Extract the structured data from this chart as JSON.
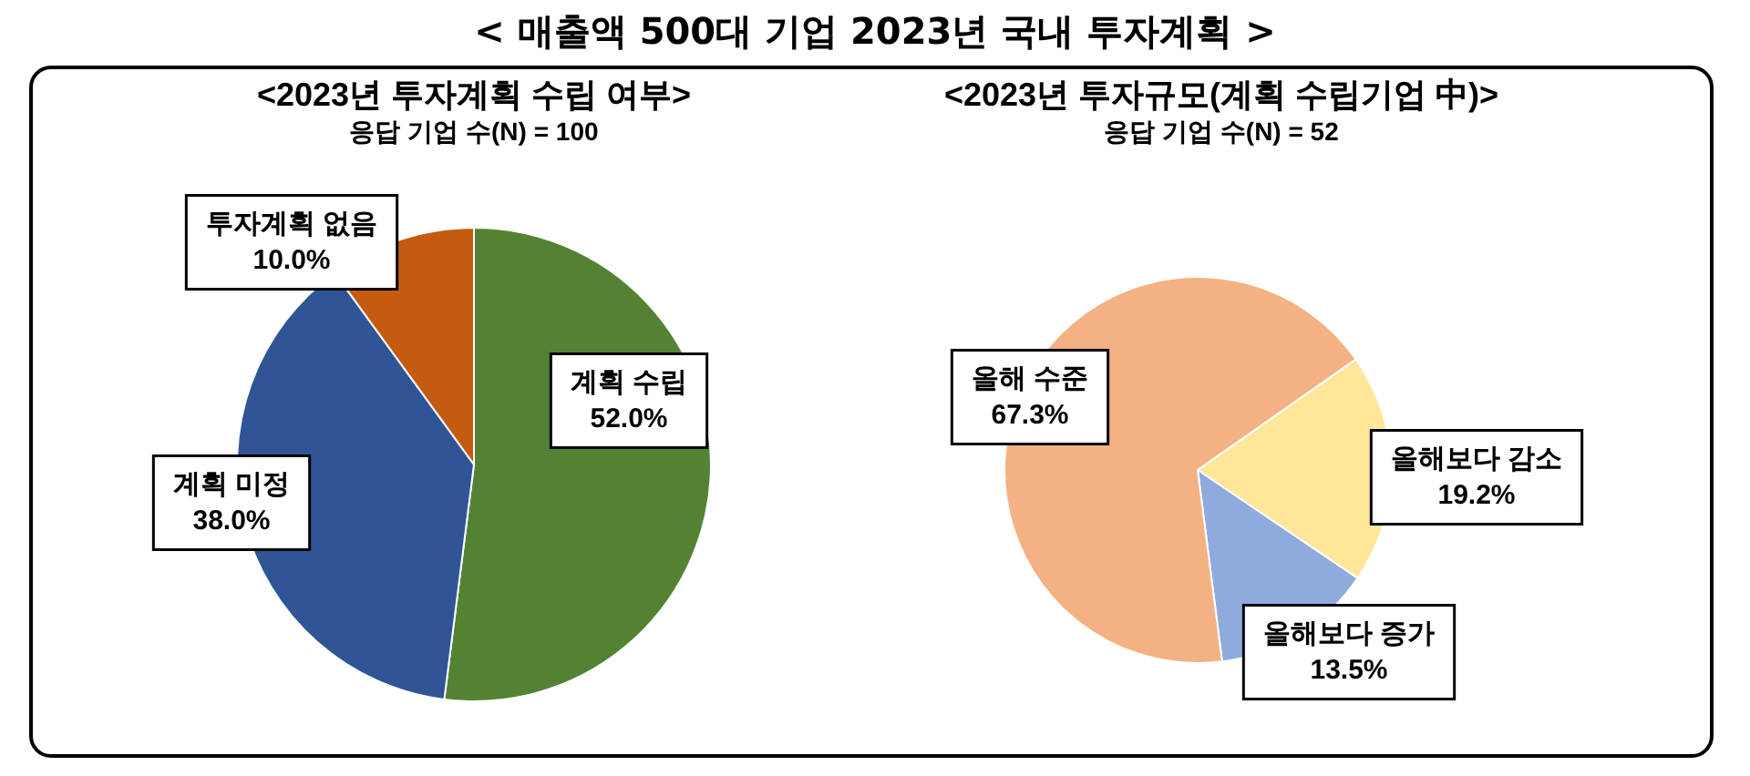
{
  "chart_data": [
    {
      "type": "pie",
      "title": "<2023년 투자계획 수립 여부>",
      "subtitle": "응답 기업 수(N) = 100",
      "annotations": [
        "< 매출액 500대 기업 2023년 국내 투자계획 >"
      ],
      "categories": [
        "계획 수립",
        "계획 미정",
        "투자계획 없음"
      ],
      "values": [
        52.0,
        38.0,
        10.0
      ],
      "colors": [
        "#548235",
        "#2f5597",
        "#c55a11"
      ],
      "value_labels": [
        "52.0%",
        "38.0%",
        "10.0%"
      ]
    },
    {
      "type": "pie",
      "title": "<2023년 투자규모(계획 수립기업 中)>",
      "subtitle": "응답 기업 수(N) = 52",
      "categories": [
        "올해보다 감소",
        "올해보다 증가",
        "올해 수준"
      ],
      "values": [
        19.2,
        13.5,
        67.3
      ],
      "colors": [
        "#ffe699",
        "#8faadc",
        "#f4b183"
      ],
      "value_labels": [
        "19.2%",
        "13.5%",
        "67.3%"
      ]
    }
  ]
}
